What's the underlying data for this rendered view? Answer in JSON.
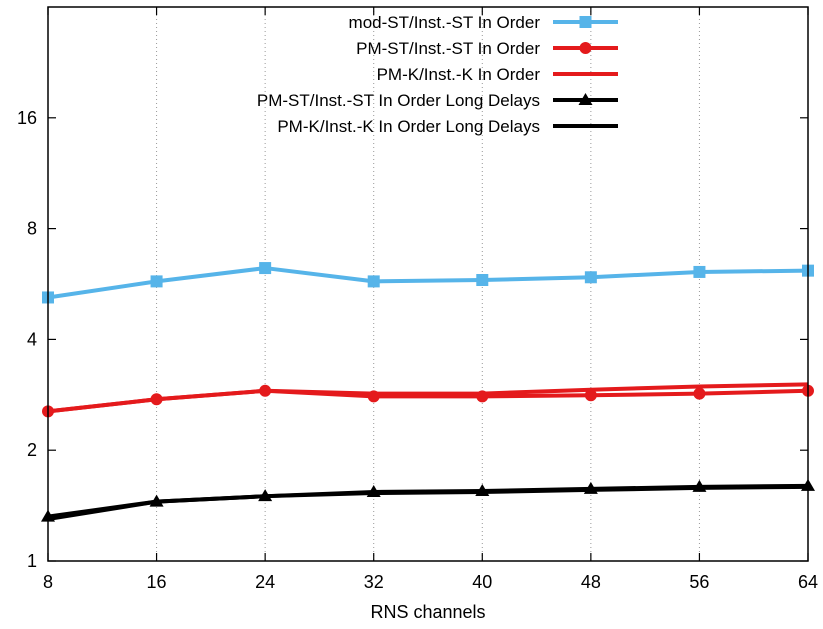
{
  "chart_data": {
    "type": "line",
    "xlabel": "RNS channels",
    "ylabel": "",
    "x": [
      8,
      16,
      24,
      32,
      40,
      48,
      56,
      64
    ],
    "xlim": [
      8,
      64
    ],
    "ylim": [
      1,
      32
    ],
    "yscale": "log2",
    "yticks": [
      1,
      2,
      4,
      8,
      16
    ],
    "grid": "vertical-dotted",
    "legend_position": "top-right",
    "series": [
      {
        "name": "mod-ST/Inst.-ST In Order",
        "color": "#56b4e9",
        "marker": "square",
        "values": [
          5.2,
          5.75,
          6.25,
          5.75,
          5.8,
          5.9,
          6.1,
          6.15
        ]
      },
      {
        "name": "PM-ST/Inst.-ST In Order",
        "color": "#e41a1c",
        "marker": "circle",
        "values": [
          2.55,
          2.75,
          2.9,
          2.8,
          2.8,
          2.82,
          2.85,
          2.9
        ]
      },
      {
        "name": "PM-K/Inst.-K In Order",
        "color": "#e41a1c",
        "marker": "none",
        "values": [
          2.55,
          2.75,
          2.9,
          2.85,
          2.85,
          2.92,
          2.98,
          3.02
        ]
      },
      {
        "name": "PM-ST/Inst.-ST In Order Long Delays",
        "color": "#000000",
        "marker": "triangle",
        "values": [
          1.32,
          1.45,
          1.5,
          1.54,
          1.55,
          1.57,
          1.59,
          1.6
        ]
      },
      {
        "name": "PM-K/Inst.-K In Order Long Delays",
        "color": "#000000",
        "marker": "none",
        "values": [
          1.3,
          1.45,
          1.5,
          1.53,
          1.54,
          1.56,
          1.58,
          1.59
        ]
      }
    ]
  }
}
